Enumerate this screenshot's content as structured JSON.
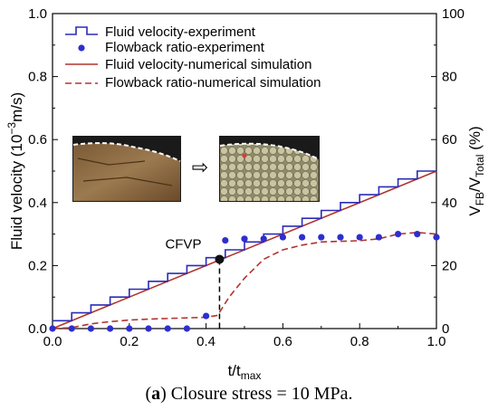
{
  "chart_data": {
    "type": "line",
    "caption": {
      "open": "(",
      "letter": "a",
      "text": ") Closure stress = 10 MPa."
    },
    "xlabel": "t/t",
    "xlabel_sub": "max",
    "ylabel_left": "Fluid velocity (10",
    "ylabel_left_sup": "−3",
    "ylabel_left_tail": "m/s)",
    "ylabel_right_a": "V",
    "ylabel_right_sub_a": "FB",
    "ylabel_right_b": "/V",
    "ylabel_right_sub_b": "Total",
    "ylabel_right_tail": " (%)",
    "xlim": [
      0.0,
      1.0
    ],
    "ylim_left": [
      0.0,
      1.0
    ],
    "ylim_right": [
      0,
      100
    ],
    "x_ticks": [
      "0.0",
      "0.2",
      "0.4",
      "0.6",
      "0.8",
      "1.0"
    ],
    "y_left_ticks": [
      "0.0",
      "0.2",
      "0.4",
      "0.6",
      "0.8",
      "1.0"
    ],
    "y_right_ticks": [
      "0",
      "20",
      "40",
      "60",
      "80",
      "100"
    ],
    "annotation": {
      "label": "CFVP",
      "x": 0.435,
      "y": 0.22
    },
    "inset_arrow": "⇨",
    "colors": {
      "velocity_experiment": "#2b2bb8",
      "flowback_experiment": "#2e2ecf",
      "velocity_simulation": "#b0352e",
      "flowback_simulation": "#b0352e"
    },
    "series": [
      {
        "name": "Fluid velocity-experiment",
        "axis": "left",
        "style": "step",
        "x": [
          0.0,
          0.05,
          0.1,
          0.15,
          0.2,
          0.25,
          0.3,
          0.35,
          0.4,
          0.45,
          0.5,
          0.55,
          0.6,
          0.65,
          0.7,
          0.75,
          0.8,
          0.85,
          0.9,
          0.95,
          1.0
        ],
        "y": [
          0.025,
          0.05,
          0.075,
          0.1,
          0.125,
          0.15,
          0.175,
          0.2,
          0.225,
          0.25,
          0.275,
          0.3,
          0.325,
          0.35,
          0.375,
          0.4,
          0.425,
          0.45,
          0.475,
          0.5,
          0.5
        ]
      },
      {
        "name": "Flowback ratio-experiment",
        "axis": "right",
        "style": "markers",
        "x": [
          0.0,
          0.05,
          0.1,
          0.15,
          0.2,
          0.25,
          0.3,
          0.35,
          0.4,
          0.45,
          0.5,
          0.55,
          0.6,
          0.65,
          0.7,
          0.75,
          0.8,
          0.85,
          0.9,
          0.95,
          1.0
        ],
        "y": [
          0,
          0,
          0,
          0,
          0,
          0,
          0,
          0,
          4,
          28,
          28.5,
          28.5,
          29,
          29,
          29,
          29,
          29,
          29,
          30,
          30,
          29
        ]
      },
      {
        "name": "Fluid velocity-numerical simulation",
        "axis": "left",
        "style": "solid",
        "x": [
          0.0,
          1.0
        ],
        "y": [
          0.0,
          0.5
        ]
      },
      {
        "name": "Flowback ratio-numerical simulation",
        "axis": "right",
        "style": "dashed",
        "x": [
          0.0,
          0.05,
          0.1,
          0.15,
          0.2,
          0.25,
          0.3,
          0.35,
          0.4,
          0.43,
          0.46,
          0.5,
          0.55,
          0.6,
          0.65,
          0.7,
          0.75,
          0.8,
          0.85,
          0.9,
          0.95,
          1.0
        ],
        "y": [
          0,
          0.3,
          1.5,
          2.2,
          2.7,
          3.0,
          3.2,
          3.4,
          3.6,
          4.2,
          10,
          16,
          22,
          25,
          26.5,
          27.5,
          27.7,
          27.9,
          28.5,
          30,
          30.5,
          30
        ]
      }
    ]
  }
}
